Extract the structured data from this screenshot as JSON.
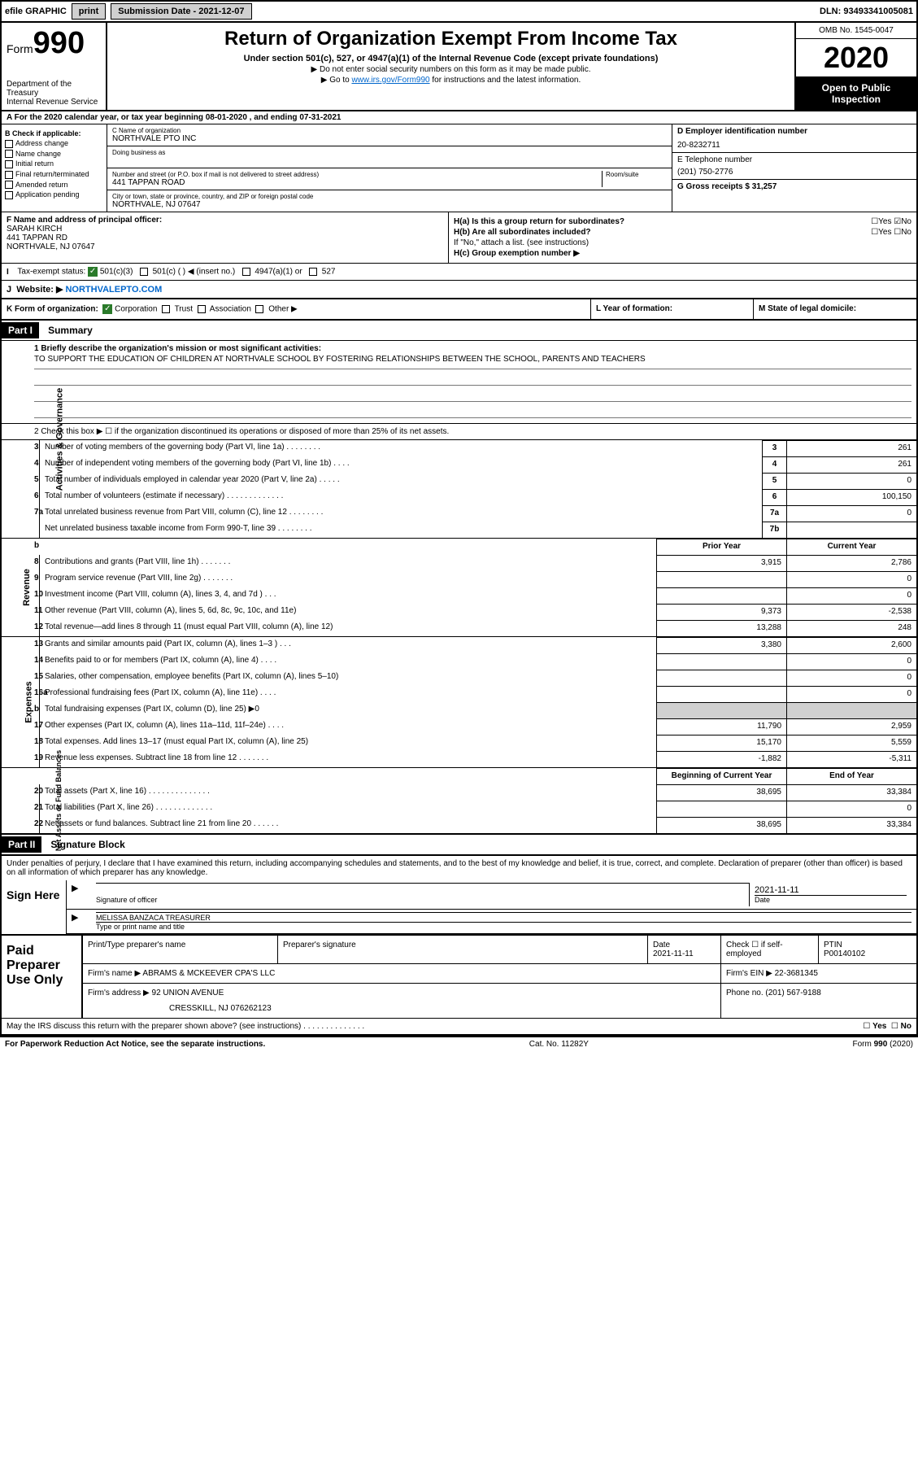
{
  "top_bar": {
    "efile": "efile GRAPHIC",
    "print_btn": "print",
    "sub_label": "Submission Date - 2021-12-07",
    "dln": "DLN: 93493341005081"
  },
  "header": {
    "form_label": "Form",
    "form_no": "990",
    "dept": "Department of the Treasury",
    "irs": "Internal Revenue Service",
    "title": "Return of Organization Exempt From Income Tax",
    "subtitle": "Under section 501(c), 527, or 4947(a)(1) of the Internal Revenue Code (except private foundations)",
    "instr1": "▶ Do not enter social security numbers on this form as it may be made public.",
    "instr2_prefix": "▶ Go to ",
    "instr2_link": "www.irs.gov/Form990",
    "instr2_suffix": " for instructions and the latest information.",
    "omb": "OMB No. 1545-0047",
    "year": "2020",
    "open": "Open to Public Inspection"
  },
  "line_a": "A For the 2020 calendar year, or tax year beginning 08-01-2020    , and ending 07-31-2021",
  "box_b": {
    "label": "B Check if applicable:",
    "opts": [
      "Address change",
      "Name change",
      "Initial return",
      "Final return/terminated",
      "Amended return",
      "Application pending"
    ]
  },
  "box_c": {
    "name_label": "C Name of organization",
    "name": "NORTHVALE PTO INC",
    "dba_label": "Doing business as",
    "addr_label": "Number and street (or P.O. box if mail is not delivered to street address)",
    "room_label": "Room/suite",
    "addr": "441 TAPPAN ROAD",
    "city_label": "City or town, state or province, country, and ZIP or foreign postal code",
    "city": "NORTHVALE, NJ  07647"
  },
  "box_d": {
    "label": "D Employer identification number",
    "value": "20-8232711"
  },
  "box_e": {
    "label": "E Telephone number",
    "value": "(201) 750-2776"
  },
  "box_g": {
    "label": "G Gross receipts $ ",
    "value": "31,257"
  },
  "box_f": {
    "label": "F  Name and address of principal officer:",
    "name": "SARAH KIRCH",
    "addr1": "441 TAPPAN RD",
    "addr2": "NORTHVALE, NJ  07647"
  },
  "box_h": {
    "a_label": "H(a)  Is this a group return for subordinates?",
    "b_label": "H(b)  Are all subordinates included?",
    "b_note": "If \"No,\" attach a list. (see instructions)",
    "c_label": "H(c)  Group exemption number ▶"
  },
  "tax_status": {
    "i_label": "I",
    "label": "Tax-exempt status:",
    "opt1": "501(c)(3)",
    "opt2": "501(c) (  ) ◀ (insert no.)",
    "opt3": "4947(a)(1) or",
    "opt4": "527"
  },
  "website": {
    "j_label": "J",
    "label": "Website: ▶",
    "value": "NORTHVALEPTO.COM"
  },
  "korg": {
    "k_label": "K Form of organization:",
    "opts": [
      "Corporation",
      "Trust",
      "Association",
      "Other ▶"
    ],
    "l_label": "L Year of formation:",
    "m_label": "M State of legal domicile:"
  },
  "part1": {
    "header": "Part I",
    "title": "Summary",
    "line1_label": "1  Briefly describe the organization's mission or most significant activities:",
    "mission": "TO SUPPORT THE EDUCATION OF CHILDREN AT NORTHVALE SCHOOL BY FOSTERING RELATIONSHIPS BETWEEN THE SCHOOL, PARENTS AND TEACHERS",
    "line2": "2   Check this box ▶ ☐  if the organization discontinued its operations or disposed of more than 25% of its net assets.",
    "sections": {
      "governance": "Activities & Governance",
      "revenue": "Revenue",
      "expenses": "Expenses",
      "netassets": "Net Assets or Fund Balances"
    },
    "rows_gov": [
      {
        "n": "3",
        "d": "Number of voting members of the governing body (Part VI, line 1a)   .   .   .   .   .   .   .   .",
        "box": "3",
        "v": "261"
      },
      {
        "n": "4",
        "d": "Number of independent voting members of the governing body (Part VI, line 1b)   .   .   .   .",
        "box": "4",
        "v": "261"
      },
      {
        "n": "5",
        "d": "Total number of individuals employed in calendar year 2020 (Part V, line 2a)   .   .   .   .   .",
        "box": "5",
        "v": "0"
      },
      {
        "n": "6",
        "d": "Total number of volunteers (estimate if necessary)    .   .   .   .   .   .   .   .   .   .   .   .   .",
        "box": "6",
        "v": "100,150"
      },
      {
        "n": "7a",
        "d": "Total unrelated business revenue from Part VIII, column (C), line 12   .   .   .   .   .   .   .   .",
        "box": "7a",
        "v": "0"
      },
      {
        "n": "",
        "d": "Net unrelated business taxable income from Form 990-T, line 39   .   .   .   .   .   .   .   .",
        "box": "7b",
        "v": ""
      }
    ],
    "rev_header": {
      "prior": "Prior Year",
      "current": "Current Year"
    },
    "rows_rev": [
      {
        "n": "8",
        "d": "Contributions and grants (Part VIII, line 1h)   .   .   .   .   .   .   .",
        "p": "3,915",
        "c": "2,786"
      },
      {
        "n": "9",
        "d": "Program service revenue (Part VIII, line 2g)   .   .   .   .   .   .   .",
        "p": "",
        "c": "0"
      },
      {
        "n": "10",
        "d": "Investment income (Part VIII, column (A), lines 3, 4, and 7d )   .   .   .",
        "p": "",
        "c": "0"
      },
      {
        "n": "11",
        "d": "Other revenue (Part VIII, column (A), lines 5, 6d, 8c, 9c, 10c, and 11e)",
        "p": "9,373",
        "c": "-2,538"
      },
      {
        "n": "12",
        "d": "Total revenue—add lines 8 through 11 (must equal Part VIII, column (A), line 12)",
        "p": "13,288",
        "c": "248"
      }
    ],
    "rows_exp": [
      {
        "n": "13",
        "d": "Grants and similar amounts paid (Part IX, column (A), lines 1–3 )   .   .   .",
        "p": "3,380",
        "c": "2,600"
      },
      {
        "n": "14",
        "d": "Benefits paid to or for members (Part IX, column (A), line 4)   .   .   .   .",
        "p": "",
        "c": "0"
      },
      {
        "n": "15",
        "d": "Salaries, other compensation, employee benefits (Part IX, column (A), lines 5–10)",
        "p": "",
        "c": "0"
      },
      {
        "n": "16a",
        "d": "Professional fundraising fees (Part IX, column (A), line 11e)   .   .   .   .",
        "p": "",
        "c": "0"
      },
      {
        "n": "b",
        "d": "Total fundraising expenses (Part IX, column (D), line 25) ▶0",
        "p": "shade",
        "c": "shade"
      },
      {
        "n": "17",
        "d": "Other expenses (Part IX, column (A), lines 11a–11d, 11f–24e)   .   .   .   .",
        "p": "11,790",
        "c": "2,959"
      },
      {
        "n": "18",
        "d": "Total expenses. Add lines 13–17 (must equal Part IX, column (A), line 25)",
        "p": "15,170",
        "c": "5,559"
      },
      {
        "n": "19",
        "d": "Revenue less expenses. Subtract line 18 from line 12   .   .   .   .   .   .   .",
        "p": "-1,882",
        "c": "-5,311"
      }
    ],
    "na_header": {
      "begin": "Beginning of Current Year",
      "end": "End of Year"
    },
    "rows_na": [
      {
        "n": "20",
        "d": "Total assets (Part X, line 16)   .   .   .   .   .   .   .   .   .   .   .   .   .   .",
        "p": "38,695",
        "c": "33,384"
      },
      {
        "n": "21",
        "d": "Total liabilities (Part X, line 26)   .   .   .   .   .   .   .   .   .   .   .   .   .",
        "p": "",
        "c": "0"
      },
      {
        "n": "22",
        "d": "Net assets or fund balances. Subtract line 21 from line 20   .   .   .   .   .   .",
        "p": "38,695",
        "c": "33,384"
      }
    ]
  },
  "part2": {
    "header": "Part II",
    "title": "Signature Block",
    "declare": "Under penalties of perjury, I declare that I have examined this return, including accompanying schedules and statements, and to the best of my knowledge and belief, it is true, correct, and complete. Declaration of preparer (other than officer) is based on all information of which preparer has any knowledge."
  },
  "sign": {
    "label": "Sign Here",
    "sig_label": "Signature of officer",
    "date": "2021-11-11",
    "date_label": "Date",
    "name": "MELISSA BANZACA  TREASURER",
    "name_label": "Type or print name and title"
  },
  "preparer": {
    "label": "Paid Preparer Use Only",
    "h1": "Print/Type preparer's name",
    "h2": "Preparer's signature",
    "h3": "Date",
    "h3v": "2021-11-11",
    "h4": "Check ☐ if self-employed",
    "h5": "PTIN",
    "h5v": "P00140102",
    "firm_label": "Firm's name      ▶",
    "firm": "ABRAMS & MCKEEVER CPA'S LLC",
    "ein_label": "Firm's EIN ▶",
    "ein": "22-3681345",
    "addr_label": "Firm's address ▶",
    "addr1": "92 UNION AVENUE",
    "addr2": "CRESSKILL, NJ  076262123",
    "phone_label": "Phone no.",
    "phone": "(201) 567-9188"
  },
  "discuss": "May the IRS discuss this return with the preparer shown above? (see instructions)    .   .   .   .   .   .   .   .   .   .   .   .   .   .",
  "footer": {
    "left": "For Paperwork Reduction Act Notice, see the separate instructions.",
    "mid": "Cat. No. 11282Y",
    "right": "Form 990 (2020)"
  }
}
